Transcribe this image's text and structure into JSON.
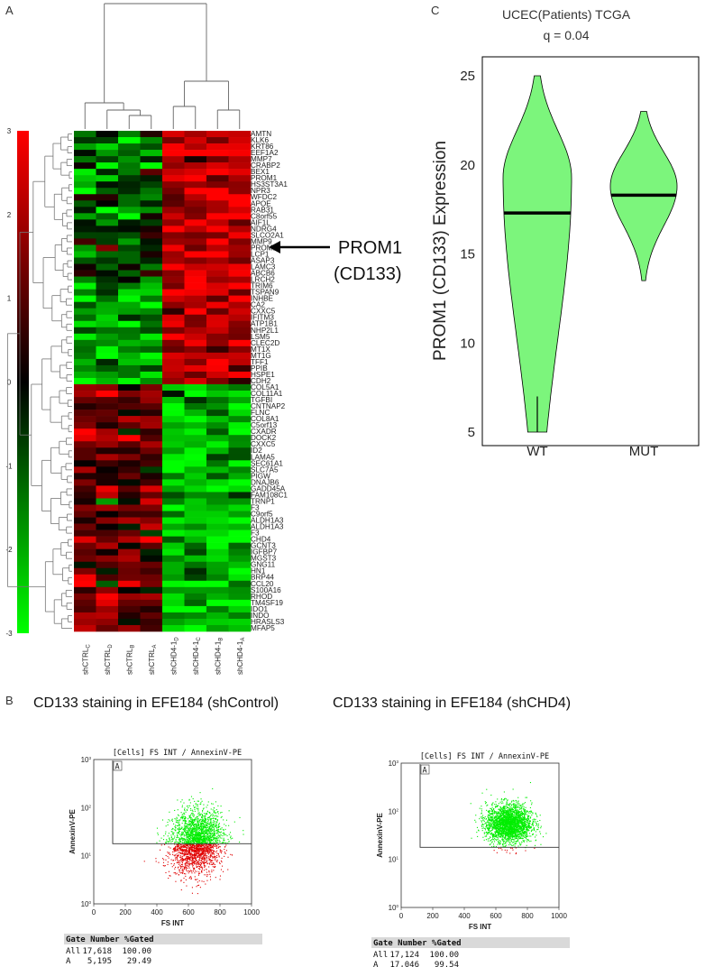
{
  "panels": {
    "a_letter": "A",
    "b_letter": "B",
    "c_letter": "C"
  },
  "colors": {
    "up": "#ff0000",
    "down": "#00ff00",
    "mid": "#000000",
    "violin_fill": "#7cf57c",
    "flow_low": "#e00000",
    "flow_high": "#00ee00"
  },
  "chart_data": [
    {
      "type": "heatmap",
      "colorbar_ticks": [
        "3",
        "2",
        "1",
        "0",
        "-1",
        "-2",
        "-3"
      ],
      "colorbar_range": [
        -3,
        3
      ],
      "columns": [
        {
          "base": "shCTRL",
          "sub": "C"
        },
        {
          "base": "shCTRL",
          "sub": "D"
        },
        {
          "base": "shCTRL",
          "sub": "B"
        },
        {
          "base": "shCTRL",
          "sub": "A"
        },
        {
          "base": "shCHD4-1",
          "sub": "D"
        },
        {
          "base": "shCHD4-1",
          "sub": "C"
        },
        {
          "base": "shCHD4-1",
          "sub": "B"
        },
        {
          "base": "shCHD4-1",
          "sub": "A"
        }
      ],
      "genes": [
        "AMTN",
        "KLK6",
        "KRT86",
        "EEF1A2",
        "MMP7",
        "CRABP2",
        "BEX1",
        "PROM1",
        "HS3ST3A1",
        "NPR3",
        "WFDC2",
        "APOE",
        "RAB31",
        "C8orf55",
        "AIF1L",
        "NDRG4",
        "SLCO2A1",
        "MMP9",
        "PROM1",
        "LCP1",
        "ASAP3",
        "LAMC3",
        "ABCB6",
        "LRCH2",
        "TRIM6",
        "TSPAN9",
        "INHBE",
        "CA2",
        "CXXC5",
        "IFITM3",
        "ATP1B1",
        "NHP2L1",
        "LSM5",
        "CLEC2D",
        "MT1X",
        "MT1G",
        "TFF1",
        "PPIB",
        "HSPE1",
        "CDH2",
        "COL5A1",
        "COL11A1",
        "TGFBI",
        "CNTNAP2",
        "FLNC",
        "COL8A1",
        "C5orf13",
        "CXADR",
        "DOCK2",
        "CXXC5",
        "ID2",
        "LAMA5",
        "SEC61A1",
        "SLC7A5",
        "PIGW",
        "DNAJB6",
        "GADD45A",
        "FAM108C1",
        "TRNP1",
        "F3",
        "C9orf5",
        "ALDH1A3",
        "ALDH1A3",
        "F3",
        "CHD4",
        "GCNT3",
        "IGFBP7",
        "MGST3",
        "GNG11",
        "HN1",
        "BRP44",
        "CCL20",
        "S100A16",
        "RHOD",
        "TM4SF19",
        "IDO1",
        "INDO",
        "HRASLS3",
        "MFAP5"
      ],
      "n_up": 40
    },
    {
      "type": "violin",
      "title": "UCEC(Patients) TCGA",
      "subtitle": "q = 0.04",
      "ylabel": "PROM1 (CD133) Expression",
      "ylim": [
        5,
        25
      ],
      "yticks": [
        "5",
        "10",
        "15",
        "20",
        "25"
      ],
      "groups": [
        {
          "name": "WT",
          "min": 5,
          "max": 25,
          "median": 17.3,
          "mode": 19.3
        },
        {
          "name": "MUT",
          "min": 13.5,
          "max": 23,
          "median": 18.3,
          "mode": 18.8
        }
      ]
    },
    {
      "type": "scatter",
      "heading": "CD133 staining in EFE184 (shControl)",
      "plot_title": "[Cells] FS INT / AnnexinV-PE",
      "xlabel": "FS INT",
      "ylabel": "AnnexinV-PE",
      "xticks": [
        "0",
        "200",
        "400",
        "600",
        "800",
        "1000"
      ],
      "gate_label": "A",
      "gate_x": 120,
      "table": {
        "header": "Gate Number %Gated",
        "rows": [
          {
            "gate": "All",
            "number": "17,618",
            "pct": "100.00"
          },
          {
            "gate": "A",
            "number": "5,195",
            "pct": "29.49"
          }
        ]
      },
      "population": {
        "center_x": 650,
        "spread_x": 150,
        "pct_in_gate": 29.49
      }
    },
    {
      "type": "scatter",
      "heading": "CD133 staining in EFE184 (shCHD4)",
      "plot_title": "[Cells] FS INT / AnnexinV-PE",
      "xlabel": "FS INT",
      "ylabel": "AnnexinV-PE",
      "xticks": [
        "0",
        "200",
        "400",
        "600",
        "800",
        "1000"
      ],
      "gate_label": "A",
      "gate_x": 120,
      "table": {
        "header": "Gate Number %Gated",
        "rows": [
          {
            "gate": "All",
            "number": "17,124",
            "pct": "100.00"
          },
          {
            "gate": "A",
            "number": "17,046",
            "pct": "99.54"
          }
        ]
      },
      "population": {
        "center_x": 680,
        "spread_x": 130,
        "pct_in_gate": 99.54
      }
    }
  ],
  "callout": {
    "line1": "PROM1",
    "line2": "(CD133)"
  }
}
